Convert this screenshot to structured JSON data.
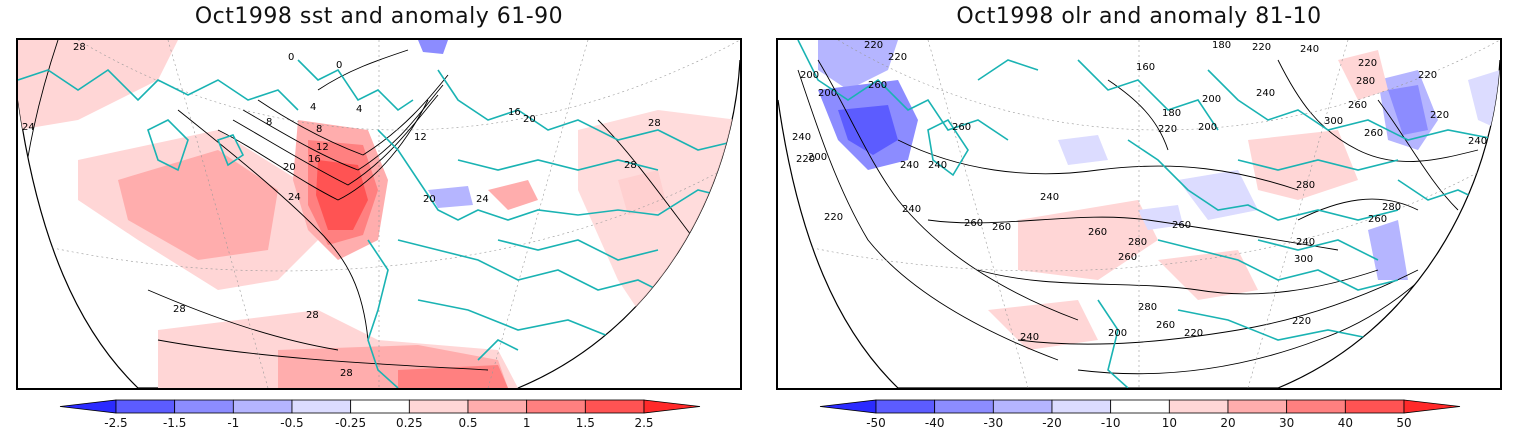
{
  "panels": [
    {
      "title": "Oct1998 sst and anomaly 61-90",
      "colorbar": {
        "ticks": [
          "-2.5",
          "-1.5",
          "-1",
          "-0.5",
          "-0.25",
          "0.25",
          "0.5",
          "1",
          "1.5",
          "2.5"
        ],
        "colors": [
          "#2b2bff",
          "#5c5cff",
          "#8c8cff",
          "#b5b5ff",
          "#dcdcff",
          "#ffffff",
          "#ffd6d6",
          "#ffadad",
          "#ff8080",
          "#ff5353",
          "#ff2a2a"
        ]
      },
      "contour_labels": [
        "28",
        "24",
        "0",
        "0",
        "4",
        "4",
        "8",
        "8",
        "12",
        "16",
        "20",
        "20",
        "24",
        "28",
        "28",
        "28",
        "28",
        "12",
        "16",
        "20",
        "24",
        "28"
      ]
    },
    {
      "title": "Oct1998 olr and anomaly 81-10",
      "colorbar": {
        "ticks": [
          "-50",
          "-40",
          "-30",
          "-20",
          "-10",
          "10",
          "20",
          "30",
          "40",
          "50"
        ],
        "colors": [
          "#2b2bff",
          "#5c5cff",
          "#8c8cff",
          "#b5b5ff",
          "#dcdcff",
          "#ffffff",
          "#ffd6d6",
          "#ffadad",
          "#ff8080",
          "#ff5353",
          "#ff2a2a"
        ]
      },
      "contour_labels": [
        "220",
        "220",
        "200",
        "200",
        "260",
        "260",
        "240",
        "220",
        "200",
        "240",
        "240",
        "220",
        "240",
        "260",
        "240",
        "260",
        "260",
        "280",
        "260",
        "180",
        "160",
        "180",
        "200",
        "220",
        "200",
        "220",
        "240",
        "220",
        "300",
        "280",
        "260",
        "240",
        "240",
        "220",
        "280",
        "260",
        "240",
        "220",
        "260",
        "240",
        "220",
        "200",
        "220",
        "280",
        "260",
        "300",
        "280",
        "260"
      ]
    }
  ]
}
